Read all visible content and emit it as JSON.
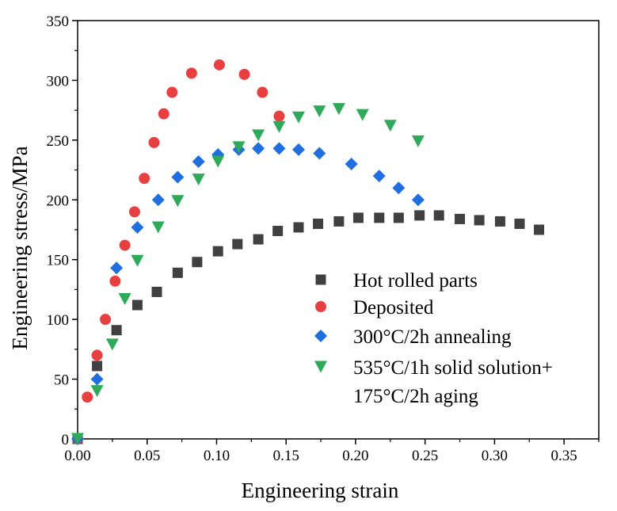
{
  "chart_data": {
    "type": "scatter",
    "title": "",
    "xlabel": "Engineering strain",
    "ylabel": "Engineering stress/MPa",
    "xlim": [
      0,
      0.375
    ],
    "ylim": [
      0,
      350
    ],
    "xticks": [
      0.0,
      0.05,
      0.1,
      0.15,
      0.2,
      0.25,
      0.3,
      0.35
    ],
    "xtick_labels": [
      "0.00",
      "0.05",
      "0.10",
      "0.15",
      "0.20",
      "0.25",
      "0.30",
      "0.35"
    ],
    "yticks": [
      0,
      50,
      100,
      150,
      200,
      250,
      300,
      350
    ],
    "ytick_labels": [
      "0",
      "50",
      "100",
      "150",
      "200",
      "250",
      "300",
      "350"
    ],
    "grid": false,
    "legend_position": "center-right",
    "series": [
      {
        "name": "Hot rolled parts",
        "marker": "square",
        "color": "#404040",
        "x": [
          0.0,
          0.014,
          0.028,
          0.043,
          0.057,
          0.072,
          0.086,
          0.101,
          0.115,
          0.13,
          0.144,
          0.159,
          0.173,
          0.188,
          0.202,
          0.217,
          0.231,
          0.246,
          0.26,
          0.275,
          0.289,
          0.304,
          0.318,
          0.332
        ],
        "y": [
          0,
          61,
          91,
          112,
          123,
          139,
          148,
          157,
          163,
          167,
          174,
          177,
          180,
          182,
          185,
          185,
          185,
          187,
          187,
          184,
          183,
          182,
          180,
          175
        ]
      },
      {
        "name": "Deposited",
        "marker": "circle",
        "color": "#e84040",
        "x": [
          0.0,
          0.007,
          0.014,
          0.02,
          0.027,
          0.034,
          0.041,
          0.048,
          0.055,
          0.062,
          0.068,
          0.082,
          0.102,
          0.12,
          0.133,
          0.145
        ],
        "y": [
          0,
          35,
          70,
          100,
          132,
          162,
          190,
          218,
          248,
          272,
          290,
          306,
          313,
          305,
          290,
          270
        ]
      },
      {
        "name": "300°C/2h annealing",
        "marker": "diamond",
        "color": "#1f6fe0",
        "x": [
          0.0,
          0.014,
          0.028,
          0.043,
          0.058,
          0.072,
          0.087,
          0.101,
          0.116,
          0.13,
          0.145,
          0.159,
          0.174,
          0.197,
          0.217,
          0.231,
          0.245
        ],
        "y": [
          0,
          50,
          143,
          177,
          200,
          219,
          232,
          238,
          242,
          243,
          243,
          242,
          239,
          230,
          220,
          210,
          200
        ]
      },
      {
        "name": "535°C/1h solid solution+\n175°C/2h aging",
        "marker": "triangle-down",
        "color": "#2eaa5a",
        "x": [
          0.0,
          0.014,
          0.025,
          0.034,
          0.043,
          0.058,
          0.072,
          0.087,
          0.101,
          0.116,
          0.13,
          0.145,
          0.159,
          0.174,
          0.188,
          0.205,
          0.225,
          0.245
        ],
        "y": [
          0,
          40,
          79,
          117,
          149,
          177,
          199,
          217,
          232,
          244,
          254,
          261,
          269,
          274,
          276,
          271,
          262,
          249
        ]
      }
    ],
    "legend_entries": [
      "Hot rolled parts",
      "Deposited",
      "300°C/2h annealing",
      "535°C/1h solid solution+",
      "175°C/2h aging"
    ]
  }
}
